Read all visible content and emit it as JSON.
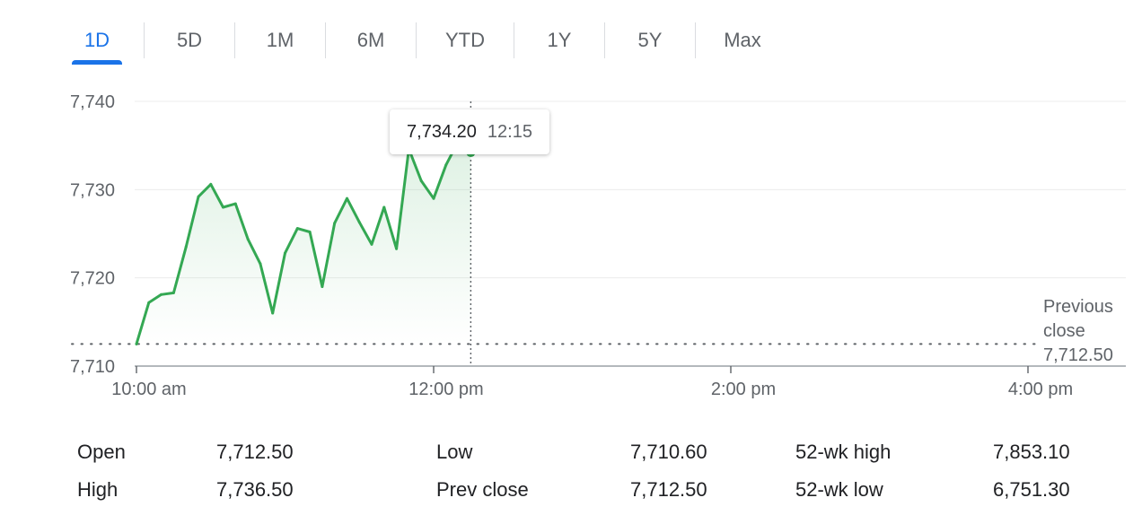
{
  "tabs": [
    {
      "label": "1D",
      "active": true
    },
    {
      "label": "5D",
      "active": false
    },
    {
      "label": "1M",
      "active": false
    },
    {
      "label": "6M",
      "active": false
    },
    {
      "label": "YTD",
      "active": false
    },
    {
      "label": "1Y",
      "active": false
    },
    {
      "label": "5Y",
      "active": false
    },
    {
      "label": "Max",
      "active": false
    }
  ],
  "tooltip": {
    "price": "7,734.20",
    "time": "12:15"
  },
  "colors": {
    "accent": "#1a73e8",
    "line": "#34a853",
    "muted": "#5f6368"
  },
  "chart_data": {
    "type": "line",
    "y_ticks": [
      "7,740",
      "7,730",
      "7,720",
      "7,710"
    ],
    "y_tick_values": [
      7740,
      7730,
      7720,
      7710
    ],
    "x_ticks": [
      "10:00 am",
      "12:00 pm",
      "2:00 pm",
      "4:00 pm"
    ],
    "x_tick_values": [
      "10:00",
      "12:00",
      "14:00",
      "16:00"
    ],
    "ylim": [
      7710,
      7740
    ],
    "xlim": [
      "10:00",
      "16:40"
    ],
    "grid": true,
    "previous_close": {
      "label_lines": [
        "Previous",
        "close",
        "7,712.50"
      ],
      "value": 7712.5
    },
    "crosshair": {
      "time": "12:15",
      "value": 7734.2
    },
    "series": [
      {
        "x": [
          "10:00",
          "10:05",
          "10:10",
          "10:15",
          "10:20",
          "10:25",
          "10:30",
          "10:35",
          "10:40",
          "10:45",
          "10:50",
          "10:55",
          "11:00",
          "11:05",
          "11:10",
          "11:15",
          "11:20",
          "11:25",
          "11:30",
          "11:35",
          "11:40",
          "11:45",
          "11:50",
          "11:55",
          "12:00",
          "12:05",
          "12:10",
          "12:15"
        ],
        "values": [
          7712.5,
          7717.2,
          7718.1,
          7718.3,
          7723.5,
          7729.2,
          7730.6,
          7728.0,
          7728.4,
          7724.4,
          7721.6,
          7716.0,
          7722.8,
          7725.6,
          7725.2,
          7719.0,
          7726.2,
          7729.0,
          7726.3,
          7723.8,
          7728.0,
          7723.3,
          7734.6,
          7731.0,
          7729.0,
          7732.8,
          7735.5,
          7734.2
        ]
      }
    ]
  },
  "stats": [
    {
      "label": "Open",
      "value": "7,712.50"
    },
    {
      "label": "High",
      "value": "7,736.50"
    },
    {
      "label": "Low",
      "value": "7,710.60"
    },
    {
      "label": "Prev close",
      "value": "7,712.50"
    },
    {
      "label": "52-wk high",
      "value": "7,853.10"
    },
    {
      "label": "52-wk low",
      "value": "6,751.30"
    }
  ]
}
